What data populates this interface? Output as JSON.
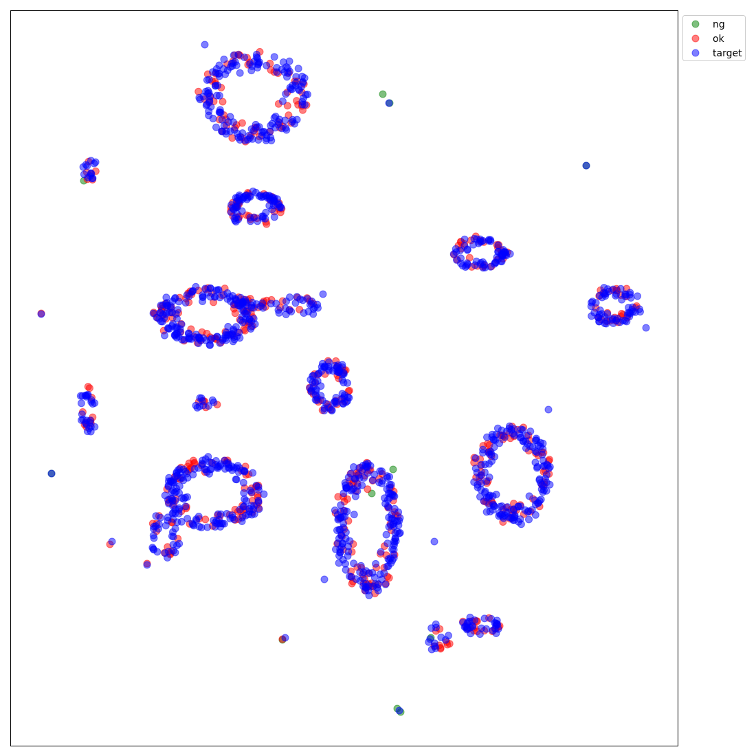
{
  "chart_data": {
    "type": "scatter",
    "title": "",
    "xlabel": "",
    "ylabel": "",
    "axes_ticks": false,
    "grid": false,
    "legend_placement": "outside-top-right",
    "series": [
      {
        "name": "ng",
        "color": "#008000",
        "alpha": 0.5,
        "points": [
          [
            557,
            137
          ],
          [
            567,
            150
          ],
          [
            122,
            263
          ],
          [
            853,
            241
          ],
          [
            75,
            689
          ],
          [
            578,
            1031
          ],
          [
            583,
            1036
          ],
          [
            541,
            718
          ],
          [
            572,
            683
          ],
          [
            627,
            928
          ],
          [
            411,
            931
          ]
        ]
      },
      {
        "name": "ok",
        "color": "#ff0000",
        "alpha": 0.5,
        "clusters": [
          {
            "cx": 370,
            "cy": 140,
            "rx": 78,
            "ry": 65,
            "n": 60,
            "seed": 11
          },
          {
            "cx": 372,
            "cy": 302,
            "rx": 38,
            "ry": 22,
            "n": 30,
            "seed": 12
          },
          {
            "cx": 300,
            "cy": 460,
            "rx": 75,
            "ry": 40,
            "n": 70,
            "seed": 13
          },
          {
            "cx": 420,
            "cy": 445,
            "rx": 50,
            "ry": 10,
            "n": 15,
            "seed": 14
          },
          {
            "cx": 480,
            "cy": 563,
            "rx": 28,
            "ry": 35,
            "n": 30,
            "seed": 15
          },
          {
            "cx": 700,
            "cy": 368,
            "rx": 38,
            "ry": 22,
            "n": 25,
            "seed": 16
          },
          {
            "cx": 895,
            "cy": 445,
            "rx": 35,
            "ry": 25,
            "n": 25,
            "seed": 17
          },
          {
            "cx": 310,
            "cy": 718,
            "rx": 70,
            "ry": 50,
            "n": 60,
            "seed": 18
          },
          {
            "cx": 240,
            "cy": 780,
            "rx": 20,
            "ry": 30,
            "n": 12,
            "seed": 19
          },
          {
            "cx": 535,
            "cy": 770,
            "rx": 45,
            "ry": 95,
            "n": 70,
            "seed": 20
          },
          {
            "cx": 745,
            "cy": 690,
            "rx": 55,
            "ry": 70,
            "n": 60,
            "seed": 21
          },
          {
            "cx": 700,
            "cy": 910,
            "rx": 28,
            "ry": 10,
            "n": 15,
            "seed": 22
          },
          {
            "cx": 640,
            "cy": 930,
            "rx": 15,
            "ry": 15,
            "n": 8,
            "seed": 23
          },
          {
            "cx": 128,
            "cy": 595,
            "rx": 8,
            "ry": 30,
            "n": 10,
            "seed": 24
          },
          {
            "cx": 130,
            "cy": 250,
            "rx": 8,
            "ry": 12,
            "n": 6,
            "seed": 25
          },
          {
            "cx": 298,
            "cy": 587,
            "rx": 15,
            "ry": 5,
            "n": 5,
            "seed": 26
          }
        ],
        "points": [
          [
            60,
            456
          ],
          [
            411,
            930
          ],
          [
            160,
            792
          ],
          [
            214,
            820
          ],
          [
            651,
            938
          ]
        ]
      },
      {
        "name": "target",
        "color": "#0000ff",
        "alpha": 0.5,
        "clusters": [
          {
            "cx": 370,
            "cy": 140,
            "rx": 78,
            "ry": 65,
            "n": 150,
            "seed": 31
          },
          {
            "cx": 372,
            "cy": 302,
            "rx": 38,
            "ry": 22,
            "n": 70,
            "seed": 32
          },
          {
            "cx": 300,
            "cy": 460,
            "rx": 75,
            "ry": 40,
            "n": 160,
            "seed": 33
          },
          {
            "cx": 420,
            "cy": 445,
            "rx": 50,
            "ry": 10,
            "n": 30,
            "seed": 34
          },
          {
            "cx": 480,
            "cy": 563,
            "rx": 28,
            "ry": 35,
            "n": 70,
            "seed": 35
          },
          {
            "cx": 700,
            "cy": 368,
            "rx": 38,
            "ry": 22,
            "n": 60,
            "seed": 36
          },
          {
            "cx": 895,
            "cy": 445,
            "rx": 35,
            "ry": 25,
            "n": 60,
            "seed": 37
          },
          {
            "cx": 310,
            "cy": 718,
            "rx": 70,
            "ry": 50,
            "n": 150,
            "seed": 38
          },
          {
            "cx": 240,
            "cy": 780,
            "rx": 20,
            "ry": 30,
            "n": 30,
            "seed": 39
          },
          {
            "cx": 535,
            "cy": 770,
            "rx": 45,
            "ry": 95,
            "n": 170,
            "seed": 40
          },
          {
            "cx": 745,
            "cy": 690,
            "rx": 55,
            "ry": 70,
            "n": 150,
            "seed": 41
          },
          {
            "cx": 700,
            "cy": 910,
            "rx": 28,
            "ry": 10,
            "n": 30,
            "seed": 42
          },
          {
            "cx": 635,
            "cy": 925,
            "rx": 15,
            "ry": 18,
            "n": 12,
            "seed": 43
          },
          {
            "cx": 128,
            "cy": 598,
            "rx": 8,
            "ry": 32,
            "n": 25,
            "seed": 44
          },
          {
            "cx": 130,
            "cy": 248,
            "rx": 8,
            "ry": 12,
            "n": 12,
            "seed": 45
          },
          {
            "cx": 298,
            "cy": 587,
            "rx": 15,
            "ry": 5,
            "n": 10,
            "seed": 46
          }
        ],
        "points": [
          [
            60,
            457
          ],
          [
            566,
            150
          ],
          [
            853,
            241
          ],
          [
            75,
            689
          ],
          [
            632,
            788
          ],
          [
            581,
            1034
          ],
          [
            214,
            822
          ],
          [
            163,
            788
          ],
          [
            415,
            928
          ],
          [
            472,
            843
          ],
          [
            940,
            477
          ],
          [
            298,
            65
          ],
          [
            798,
            596
          ],
          [
            470,
            428
          ],
          [
            137,
            238
          ]
        ]
      }
    ]
  },
  "legend": {
    "items": [
      {
        "label": "ng",
        "color": "#008000"
      },
      {
        "label": "ok",
        "color": "#ff0000"
      },
      {
        "label": "target",
        "color": "#0000ff"
      }
    ]
  }
}
